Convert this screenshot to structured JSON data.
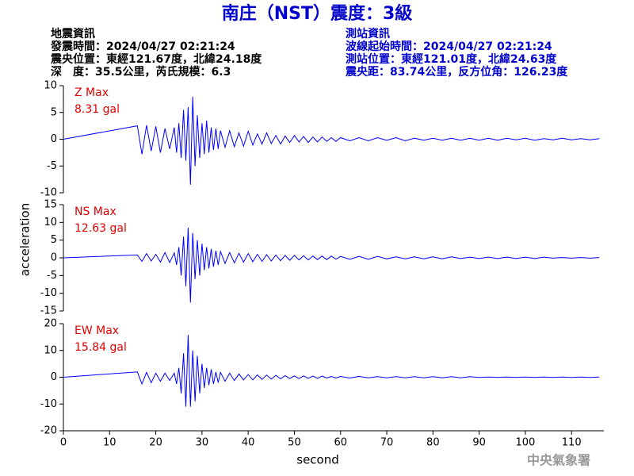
{
  "header": {
    "title": "南庄（NST）震度：3級",
    "left": [
      "地震資訊",
      "發震時間：2024/04/27 02:21:24",
      "震央位置：東經121.67度，北緯24.18度",
      "深　度：35.5公里，芮氏規模：6.3"
    ],
    "right": [
      "測站資訊",
      "波線起始時間：2024/04/27 02:21:24",
      "測站位置：東經121.01度，北緯24.63度",
      "震央距：83.74公里，反方位角：126.23度"
    ]
  },
  "footer": "中央氣象署",
  "chart_data": [
    {
      "type": "line",
      "annotations": [
        "Z Max",
        "8.31 gal"
      ],
      "color": "#0000ff",
      "xlim": [
        0,
        117
      ],
      "ylim": [
        -10,
        10
      ],
      "yticks": [
        -10,
        -5,
        0,
        5,
        10
      ],
      "x": [
        0,
        16,
        17,
        18,
        19,
        20,
        21,
        22,
        23,
        24,
        24.5,
        25,
        25.5,
        26,
        26.5,
        27,
        27.5,
        28,
        28.5,
        29,
        29.5,
        30,
        30.5,
        31,
        31.5,
        32,
        32.5,
        33,
        33.5,
        34,
        35,
        36,
        37,
        38,
        39,
        40,
        41,
        42,
        43,
        44,
        45,
        46,
        47,
        48,
        49,
        50,
        51,
        52,
        53,
        54,
        55,
        56,
        57,
        58,
        59,
        60,
        62,
        64,
        66,
        68,
        70,
        72,
        74,
        76,
        78,
        80,
        82,
        84,
        86,
        88,
        90,
        92,
        94,
        96,
        98,
        100,
        102,
        104,
        106,
        108,
        110,
        112,
        114,
        116
      ],
      "values": [
        0,
        2.5,
        -2.8,
        2.6,
        -2.2,
        2.4,
        -2.5,
        2.0,
        -1.8,
        2.2,
        -2.5,
        3,
        -3.5,
        5.5,
        -4,
        6,
        -8.5,
        7.9,
        -5,
        4.5,
        -3.5,
        3,
        -2.8,
        3.5,
        -2.5,
        2.2,
        -2,
        2,
        -1.8,
        1.6,
        -1.5,
        1.6,
        -1.4,
        1.2,
        -1.3,
        1.5,
        -1.1,
        1.0,
        -0.9,
        1.2,
        -0.8,
        0.7,
        -0.9,
        0.6,
        -0.6,
        0.7,
        -0.5,
        0.5,
        -0.6,
        0.4,
        -0.5,
        0.4,
        -0.4,
        0.3,
        -0.4,
        0.3,
        -0.3,
        0.3,
        -0.3,
        0.3,
        -0.2,
        0.3,
        -0.3,
        0.2,
        -0.2,
        0.2,
        -0.2,
        0.2,
        -0.2,
        0.2,
        -0.2,
        0.2,
        -0.2,
        0.2,
        -0.1,
        0.2,
        -0.2,
        0.1,
        -0.1,
        0.2,
        -0.1,
        0.1,
        -0.1,
        0.1
      ]
    },
    {
      "type": "line",
      "annotations": [
        "NS Max",
        "12.63 gal"
      ],
      "color": "#0000ff",
      "ylabel": "acceleration",
      "xlim": [
        0,
        117
      ],
      "ylim": [
        -15,
        15
      ],
      "yticks": [
        -15,
        -10,
        -5,
        0,
        5,
        10,
        15
      ],
      "x": [
        0,
        16,
        17,
        18,
        19,
        20,
        21,
        22,
        23,
        24,
        24.5,
        25,
        25.5,
        26,
        26.5,
        27,
        27.5,
        28,
        28.5,
        29,
        29.5,
        30,
        30.5,
        31,
        31.5,
        32,
        32.5,
        33,
        33.5,
        34,
        35,
        36,
        37,
        38,
        39,
        40,
        41,
        42,
        43,
        44,
        45,
        46,
        47,
        48,
        49,
        50,
        51,
        52,
        53,
        54,
        55,
        56,
        57,
        58,
        59,
        60,
        62,
        64,
        66,
        68,
        70,
        72,
        74,
        76,
        78,
        80,
        82,
        84,
        86,
        88,
        90,
        92,
        94,
        96,
        98,
        100,
        102,
        104,
        106,
        108,
        110,
        112,
        114,
        116
      ],
      "values": [
        0,
        0.8,
        -1,
        1.2,
        -0.9,
        1,
        -1.2,
        1.5,
        -1.3,
        1.4,
        -2,
        3,
        -5,
        6,
        -8,
        8.5,
        -12.6,
        7,
        -6,
        5,
        -5,
        4,
        -3.5,
        3,
        -3,
        2.5,
        -2.5,
        2,
        -2,
        1.8,
        -1.6,
        1.5,
        -1.4,
        1.3,
        -1.2,
        1.2,
        -1.1,
        1,
        -1,
        0.9,
        -0.9,
        0.8,
        -0.8,
        0.7,
        -0.7,
        0.7,
        -0.6,
        0.6,
        -0.6,
        0.5,
        -0.5,
        0.5,
        -0.5,
        0.5,
        -0.4,
        0.4,
        -0.4,
        0.4,
        -0.4,
        0.4,
        -0.3,
        0.3,
        -0.3,
        0.3,
        -0.3,
        0.3,
        -0.3,
        0.3,
        -0.2,
        0.2,
        -0.2,
        0.2,
        -0.2,
        0.2,
        -0.2,
        0.2,
        -0.2,
        0.2,
        -0.1,
        0.1,
        -0.1,
        0.1,
        -0.1,
        0.1
      ]
    },
    {
      "type": "line",
      "annotations": [
        "EW Max",
        "15.84 gal"
      ],
      "color": "#0000ff",
      "xlabel": "second",
      "xlim": [
        0,
        117
      ],
      "ylim": [
        -20,
        20
      ],
      "yticks": [
        -20,
        -10,
        0,
        10,
        20
      ],
      "xticks": [
        0,
        10,
        20,
        30,
        40,
        50,
        60,
        70,
        80,
        90,
        100,
        110
      ],
      "x": [
        0,
        16,
        17,
        18,
        19,
        20,
        21,
        22,
        23,
        24,
        24.5,
        25,
        25.5,
        26,
        26.5,
        27,
        27.5,
        28,
        28.5,
        29,
        29.5,
        30,
        30.5,
        31,
        31.5,
        32,
        32.5,
        33,
        33.5,
        34,
        35,
        36,
        37,
        38,
        39,
        40,
        41,
        42,
        43,
        44,
        45,
        46,
        47,
        48,
        49,
        50,
        51,
        52,
        53,
        54,
        55,
        56,
        57,
        58,
        59,
        60,
        62,
        64,
        66,
        68,
        70,
        72,
        74,
        76,
        78,
        80,
        82,
        84,
        86,
        88,
        90,
        92,
        94,
        96,
        98,
        100,
        102,
        104,
        106,
        108,
        110,
        112,
        114,
        116
      ],
      "values": [
        0,
        2,
        -2.5,
        1.8,
        -2,
        1.5,
        -1.5,
        1.5,
        -1.2,
        1.5,
        -2.5,
        3.5,
        -6,
        9,
        -11,
        15.8,
        -11,
        10,
        -9,
        8,
        -6,
        5,
        -4,
        3.5,
        -3,
        3,
        -2.5,
        2,
        -2,
        1.8,
        -1.5,
        1.5,
        -1.2,
        1.2,
        -1,
        1,
        -1,
        0.9,
        -0.8,
        0.8,
        -0.7,
        0.7,
        -0.6,
        0.6,
        -0.5,
        0.5,
        -0.5,
        0.5,
        -0.4,
        0.4,
        -0.4,
        0.4,
        -0.3,
        0.3,
        -0.3,
        0.3,
        -0.3,
        0.3,
        -0.2,
        0.2,
        -0.2,
        0.2,
        -0.2,
        0.2,
        -0.2,
        0.2,
        -0.2,
        0.2,
        -0.2,
        0.2,
        -0.1,
        0.1,
        -0.1,
        0.1,
        -0.1,
        0.1,
        -0.1,
        0.1,
        -0.1,
        0.1,
        -0.1,
        0.1,
        -0.1,
        0.1
      ]
    }
  ]
}
